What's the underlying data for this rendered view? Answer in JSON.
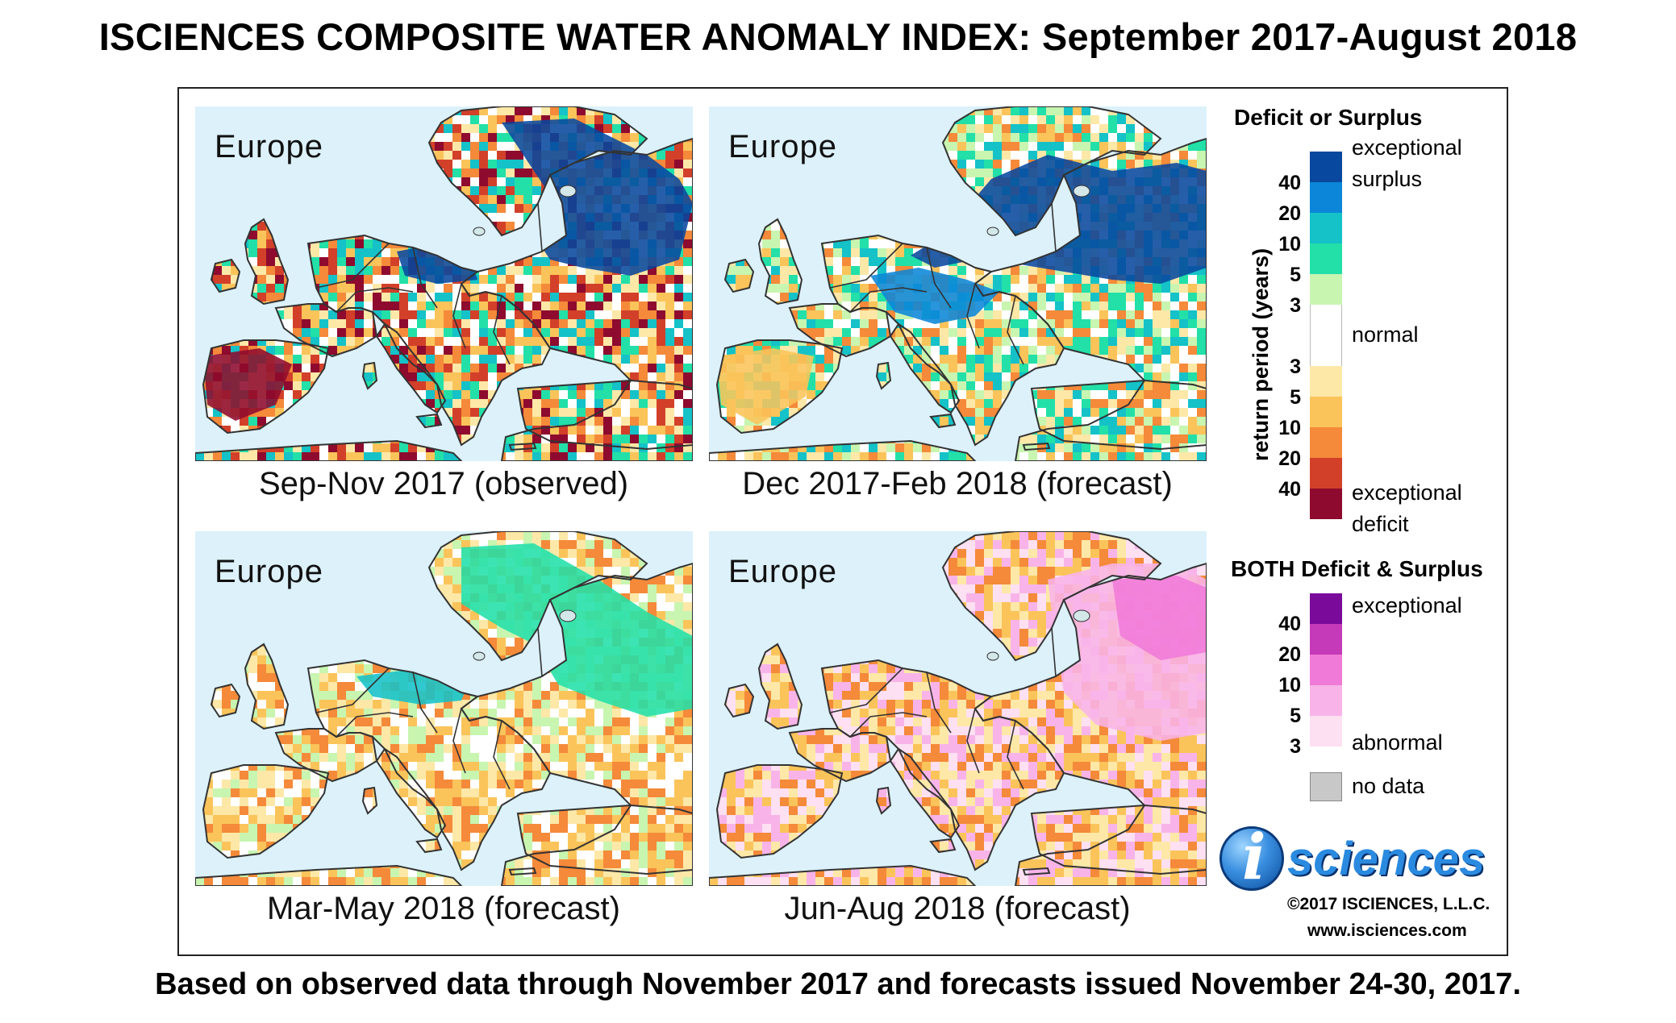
{
  "title": "ISCIENCES COMPOSITE WATER ANOMALY INDEX: September 2017-August 2018",
  "footer": "Based on observed data through November 2017 and forecasts issued November 24-30, 2017.",
  "panels": [
    {
      "region": "Europe",
      "caption": "Sep-Nov 2017 (observed)"
    },
    {
      "region": "Europe",
      "caption": "Dec 2017-Feb 2018 (forecast)"
    },
    {
      "region": "Europe",
      "caption": "Mar-May 2018 (forecast)"
    },
    {
      "region": "Europe",
      "caption": "Jun-Aug 2018 (forecast)"
    }
  ],
  "legend": {
    "deficit_surplus_title": "Deficit or Surplus",
    "axis_label": "return period (years)",
    "exceptional_surplus_1": "exceptional",
    "exceptional_surplus_2": "surplus",
    "normal": "normal",
    "exceptional_deficit_1": "exceptional",
    "exceptional_deficit_2": "deficit",
    "surplus_ticks": [
      "40",
      "20",
      "10",
      "5",
      "3"
    ],
    "deficit_ticks": [
      "3",
      "5",
      "10",
      "20",
      "40"
    ],
    "surplus_colors": [
      "#08489e",
      "#0b86d8",
      "#14c2c8",
      "#22e0a8",
      "#c8f5b0"
    ],
    "normal_color": "#ffffff",
    "deficit_colors": [
      "#fde8a8",
      "#fbc45a",
      "#f48a3a",
      "#d2402a",
      "#8e0a2e"
    ],
    "both_title": "BOTH Deficit & Surplus",
    "both_exceptional": "exceptional",
    "both_abnormal": "abnormal",
    "both_ticks": [
      "40",
      "20",
      "10",
      "5",
      "3"
    ],
    "both_colors": [
      "#7a0a9a",
      "#c43ab8",
      "#f07ad8",
      "#f8b4e8",
      "#fde0f2"
    ],
    "no_data": "no data",
    "no_data_color": "#c8c8c8"
  },
  "logo": {
    "i": "i",
    "word": "sciences"
  },
  "copyright": "©2017 ISCIENCES, L.L.C.",
  "website": "www.isciences.com"
}
